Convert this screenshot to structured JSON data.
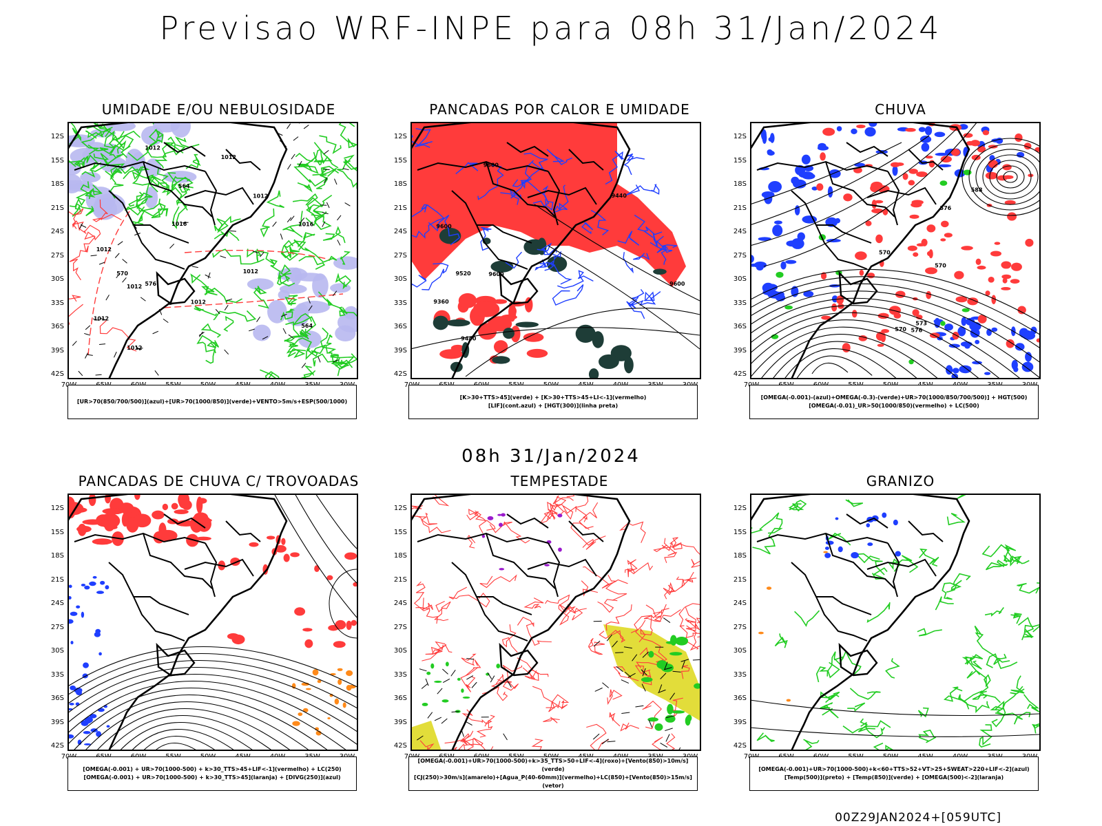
{
  "header": {
    "title": "Previsao WRF-INPE  para 08h 31/Jan/2024"
  },
  "mid": {
    "title": "08h 31/Jan/2024"
  },
  "footer": {
    "run": "00Z29JAN2024+[059UTC]"
  },
  "axes": {
    "lat_labels": [
      "12S",
      "15S",
      "18S",
      "21S",
      "24S",
      "27S",
      "30S",
      "33S",
      "36S",
      "39S",
      "42S"
    ],
    "lon_labels": [
      "70W",
      "65W",
      "60W",
      "55W",
      "50W",
      "45W",
      "40W",
      "35W",
      "30W"
    ]
  },
  "colors": {
    "blue": "#1f3fff",
    "green": "#22cc22",
    "red": "#ff3b3b",
    "lavender": "#b8b8f0",
    "darkgreen": "#1e3d37",
    "orange": "#ff8a1a",
    "yellow": "#e2dd3a",
    "purple": "#9a1acc"
  },
  "panels": [
    {
      "title": "UMIDADE E/OU NEBULOSIDADE",
      "legend": [
        "[UR>70(850/700/500)](azul)+[UR>70(1000/850)](verde)+VENTO>5m/s+ESP(500/1000)"
      ]
    },
    {
      "title": "PANCADAS POR CALOR E UMIDADE",
      "legend": [
        "[K>30+TTS>45](verde) + [K>30+TTS>45+LI<-1](vermelho)",
        "[LIF](cont.azul) + [HGT(300)](linha preta)"
      ]
    },
    {
      "title": "CHUVA",
      "legend": [
        "[OMEGA(-0.001)-(azul)+OMEGA(-0.3)-(verde)+UR>70(1000/850/700/500)] + HGT(500)",
        "[OMEGA(-0.01)_UR>50(1000/850)(vermelho) + LC(500)"
      ]
    },
    {
      "title": "PANCADAS DE CHUVA C/ TROVOADAS",
      "legend": [
        "[OMEGA(-0.001) + UR>70(1000-500) + k>30_TTS>45+LIF<-1](vermelho) + LC(250)",
        "[OMEGA(-0.001) + UR>70(1000-500) + k>30_TTS>45](laranja) + [DIVG(250)](azul)"
      ]
    },
    {
      "title": "TEMPESTADE",
      "legend": [
        "[OMEGA(-0.001)+UR>70(1000-500)+k>35_TTS>50+LIF<-4](roxo)+[Vento(850)>10m/s](verde)",
        "[CJ(250)>30m/s](amarelo)+[Agua_P(40-60mm)](vermelho)+LC(850)+[Vento(850)>15m/s](vetor)"
      ]
    },
    {
      "title": "GRANIZO",
      "legend": [
        "[OMEGA(-0.001)+UR>70(1000-500)+k<60+TTS>52+VT>25+SWEAT>220+LIF<-2](azul)",
        "[Temp(500)](preto) + [Temp(850)](verde) + [OMEGA(500)<-2](laranja)"
      ]
    }
  ],
  "contour_labels": {
    "p0": [
      "1012",
      "1016",
      "1012",
      "1012",
      "1012",
      "1012",
      "1012",
      "1016",
      "1012",
      "1012",
      "1012",
      "570",
      "576",
      "564",
      "564"
    ],
    "p1": [
      "9600",
      "9600",
      "9600",
      "9520",
      "9600",
      "9440",
      "9360",
      "9440"
    ],
    "p2": [
      "570",
      "576",
      "573",
      "570",
      "576",
      "570",
      "588"
    ]
  }
}
